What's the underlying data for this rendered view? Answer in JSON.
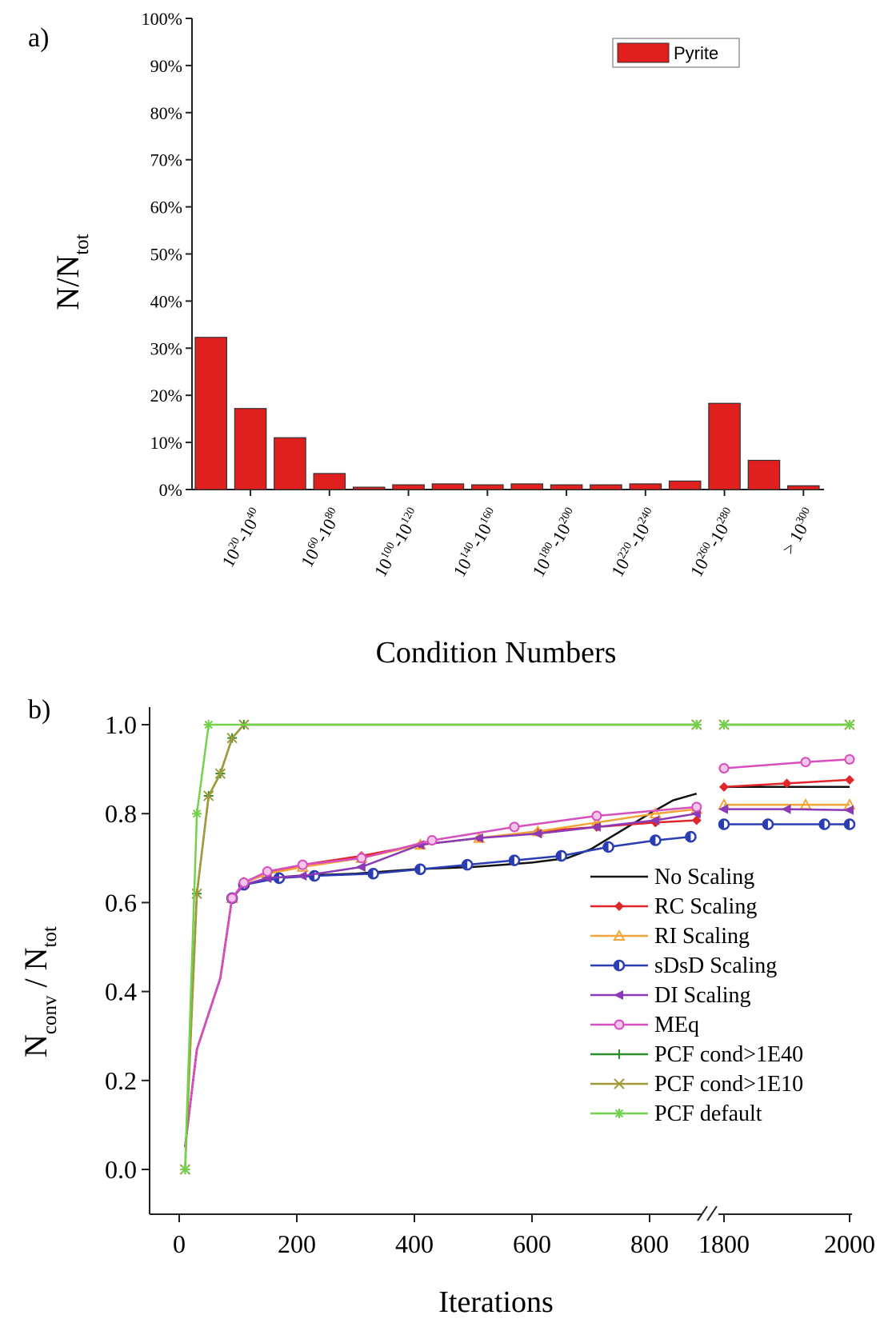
{
  "chart_data": [
    {
      "panel_label": "a)",
      "type": "bar",
      "xlabel": "Condition Numbers",
      "ylabel_main": "N/N",
      "ylabel_sub": "tot",
      "ylim": [
        0,
        100
      ],
      "yticks": [
        "0%",
        "10%",
        "20%",
        "30%",
        "40%",
        "50%",
        "60%",
        "70%",
        "80%",
        "90%",
        "100%"
      ],
      "tick_labels": [
        {
          "base": "10",
          "e1": "20",
          "sep": "-",
          "base2": "10",
          "e2": "40"
        },
        {
          "base": "10",
          "e1": "60",
          "sep": "-",
          "base2": "10",
          "e2": "80"
        },
        {
          "base": "10",
          "e1": "100",
          "sep": "-",
          "base2": "10",
          "e2": "120"
        },
        {
          "base": "10",
          "e1": "140",
          "sep": "-",
          "base2": "10",
          "e2": "160"
        },
        {
          "base": "10",
          "e1": "180",
          "sep": "-",
          "base2": "10",
          "e2": "200"
        },
        {
          "base": "10",
          "e1": "220",
          "sep": "-",
          "base2": "10",
          "e2": "240"
        },
        {
          "base": "10",
          "e1": "260",
          "sep": "-",
          "base2": "10",
          "e2": "280"
        },
        {
          "base": "> 10",
          "e1": "300",
          "sep": "",
          "base2": "",
          "e2": ""
        }
      ],
      "series": [
        {
          "name": "Pyrite",
          "color": "#e01f1f",
          "values": [
            32.3,
            17.2,
            11.0,
            3.4,
            0.5,
            1.0,
            1.2,
            1.0,
            1.2,
            1.0,
            1.0,
            1.2,
            1.8,
            18.3,
            6.2,
            0.8
          ]
        }
      ],
      "legend": "top-right"
    },
    {
      "panel_label": "b)",
      "type": "line",
      "xlabel": "Iterations",
      "ylabel_main": "N",
      "ylabel_sub1": "conv",
      "ylabel_mid": " / N",
      "ylabel_sub2": "tot",
      "ylim": [
        -0.1,
        1.05
      ],
      "yticks": [
        "0.0",
        "0.2",
        "0.4",
        "0.6",
        "0.8",
        "1.0"
      ],
      "xticks": [
        "0",
        "200",
        "400",
        "600",
        "800",
        "1800",
        "2000"
      ],
      "x_break": [
        880,
        1780
      ],
      "legend": "bottom-right",
      "series": [
        {
          "name": "No Scaling",
          "color": "#111111",
          "marker": "none",
          "points": [
            [
              10,
              0.05
            ],
            [
              30,
              0.27
            ],
            [
              50,
              0.35
            ],
            [
              70,
              0.43
            ],
            [
              90,
              0.61
            ],
            [
              110,
              0.64
            ],
            [
              150,
              0.655
            ],
            [
              200,
              0.66
            ],
            [
              300,
              0.665
            ],
            [
              400,
              0.675
            ],
            [
              500,
              0.68
            ],
            [
              600,
              0.69
            ],
            [
              660,
              0.7
            ],
            [
              700,
              0.72
            ],
            [
              750,
              0.76
            ],
            [
              800,
              0.8
            ],
            [
              840,
              0.83
            ],
            [
              880,
              0.845
            ],
            [
              1800,
              0.86
            ],
            [
              2000,
              0.86
            ]
          ]
        },
        {
          "name": "RC Scaling",
          "color": "#e0262b",
          "marker": "diamond",
          "points": [
            [
              10,
              0.05
            ],
            [
              30,
              0.27
            ],
            [
              50,
              0.35
            ],
            [
              70,
              0.43
            ],
            [
              90,
              0.61
            ],
            [
              110,
              0.645
            ],
            [
              150,
              0.665
            ],
            [
              210,
              0.685
            ],
            [
              310,
              0.705
            ],
            [
              410,
              0.73
            ],
            [
              510,
              0.745
            ],
            [
              610,
              0.76
            ],
            [
              710,
              0.77
            ],
            [
              810,
              0.78
            ],
            [
              880,
              0.785
            ],
            [
              1800,
              0.86
            ],
            [
              1900,
              0.868
            ],
            [
              2000,
              0.876
            ]
          ]
        },
        {
          "name": "RI Scaling",
          "color": "#f0a53a",
          "marker": "triangle",
          "points": [
            [
              10,
              0.05
            ],
            [
              30,
              0.27
            ],
            [
              50,
              0.35
            ],
            [
              70,
              0.43
            ],
            [
              90,
              0.61
            ],
            [
              110,
              0.645
            ],
            [
              150,
              0.665
            ],
            [
              210,
              0.68
            ],
            [
              310,
              0.7
            ],
            [
              410,
              0.73
            ],
            [
              510,
              0.745
            ],
            [
              610,
              0.76
            ],
            [
              710,
              0.78
            ],
            [
              810,
              0.8
            ],
            [
              880,
              0.81
            ],
            [
              1800,
              0.82
            ],
            [
              1930,
              0.82
            ],
            [
              2000,
              0.82
            ]
          ]
        },
        {
          "name": "sDsD Scaling",
          "color": "#2b3db3",
          "marker": "halfcircle",
          "points": [
            [
              10,
              0.05
            ],
            [
              30,
              0.27
            ],
            [
              50,
              0.35
            ],
            [
              70,
              0.43
            ],
            [
              90,
              0.61
            ],
            [
              110,
              0.64
            ],
            [
              170,
              0.655
            ],
            [
              230,
              0.66
            ],
            [
              330,
              0.665
            ],
            [
              410,
              0.675
            ],
            [
              490,
              0.685
            ],
            [
              570,
              0.695
            ],
            [
              650,
              0.705
            ],
            [
              730,
              0.725
            ],
            [
              810,
              0.74
            ],
            [
              870,
              0.748
            ],
            [
              1800,
              0.776
            ],
            [
              1870,
              0.776
            ],
            [
              1960,
              0.776
            ],
            [
              2000,
              0.776
            ]
          ]
        },
        {
          "name": "DI Scaling",
          "color": "#8a3ab6",
          "marker": "lefttriangle",
          "points": [
            [
              10,
              0.05
            ],
            [
              30,
              0.27
            ],
            [
              50,
              0.35
            ],
            [
              70,
              0.43
            ],
            [
              90,
              0.61
            ],
            [
              110,
              0.64
            ],
            [
              150,
              0.655
            ],
            [
              210,
              0.66
            ],
            [
              310,
              0.68
            ],
            [
              410,
              0.73
            ],
            [
              510,
              0.745
            ],
            [
              610,
              0.755
            ],
            [
              710,
              0.77
            ],
            [
              810,
              0.785
            ],
            [
              880,
              0.8
            ],
            [
              1800,
              0.81
            ],
            [
              1900,
              0.81
            ],
            [
              2000,
              0.808
            ]
          ]
        },
        {
          "name": "MEq",
          "color": "#d74fbe",
          "marker": "circle",
          "points": [
            [
              10,
              0.05
            ],
            [
              30,
              0.27
            ],
            [
              50,
              0.35
            ],
            [
              70,
              0.43
            ],
            [
              90,
              0.61
            ],
            [
              110,
              0.645
            ],
            [
              150,
              0.67
            ],
            [
              210,
              0.685
            ],
            [
              310,
              0.7
            ],
            [
              430,
              0.74
            ],
            [
              570,
              0.77
            ],
            [
              710,
              0.795
            ],
            [
              880,
              0.815
            ],
            [
              1800,
              0.902
            ],
            [
              1930,
              0.916
            ],
            [
              2000,
              0.922
            ]
          ]
        },
        {
          "name": "PCF cond>1E40",
          "color": "#2c8f2c",
          "marker": "plus",
          "points": [
            [
              10,
              0.0
            ],
            [
              30,
              0.62
            ],
            [
              50,
              0.84
            ],
            [
              70,
              0.89
            ],
            [
              90,
              0.97
            ],
            [
              110,
              1.0
            ],
            [
              880,
              1.0
            ],
            [
              1800,
              1.0
            ],
            [
              2000,
              1.0
            ]
          ]
        },
        {
          "name": "PCF cond>1E10",
          "color": "#a09a3a",
          "marker": "cross",
          "points": [
            [
              10,
              0.0
            ],
            [
              30,
              0.62
            ],
            [
              50,
              0.84
            ],
            [
              70,
              0.89
            ],
            [
              90,
              0.97
            ],
            [
              110,
              1.0
            ],
            [
              880,
              1.0
            ],
            [
              1800,
              1.0
            ],
            [
              2000,
              1.0
            ]
          ]
        },
        {
          "name": "PCF default",
          "color": "#72d24b",
          "marker": "asterisk",
          "points": [
            [
              10,
              0.0
            ],
            [
              30,
              0.8
            ],
            [
              50,
              1.0
            ],
            [
              880,
              1.0
            ],
            [
              1800,
              1.0
            ],
            [
              2000,
              1.0
            ]
          ]
        }
      ]
    }
  ]
}
